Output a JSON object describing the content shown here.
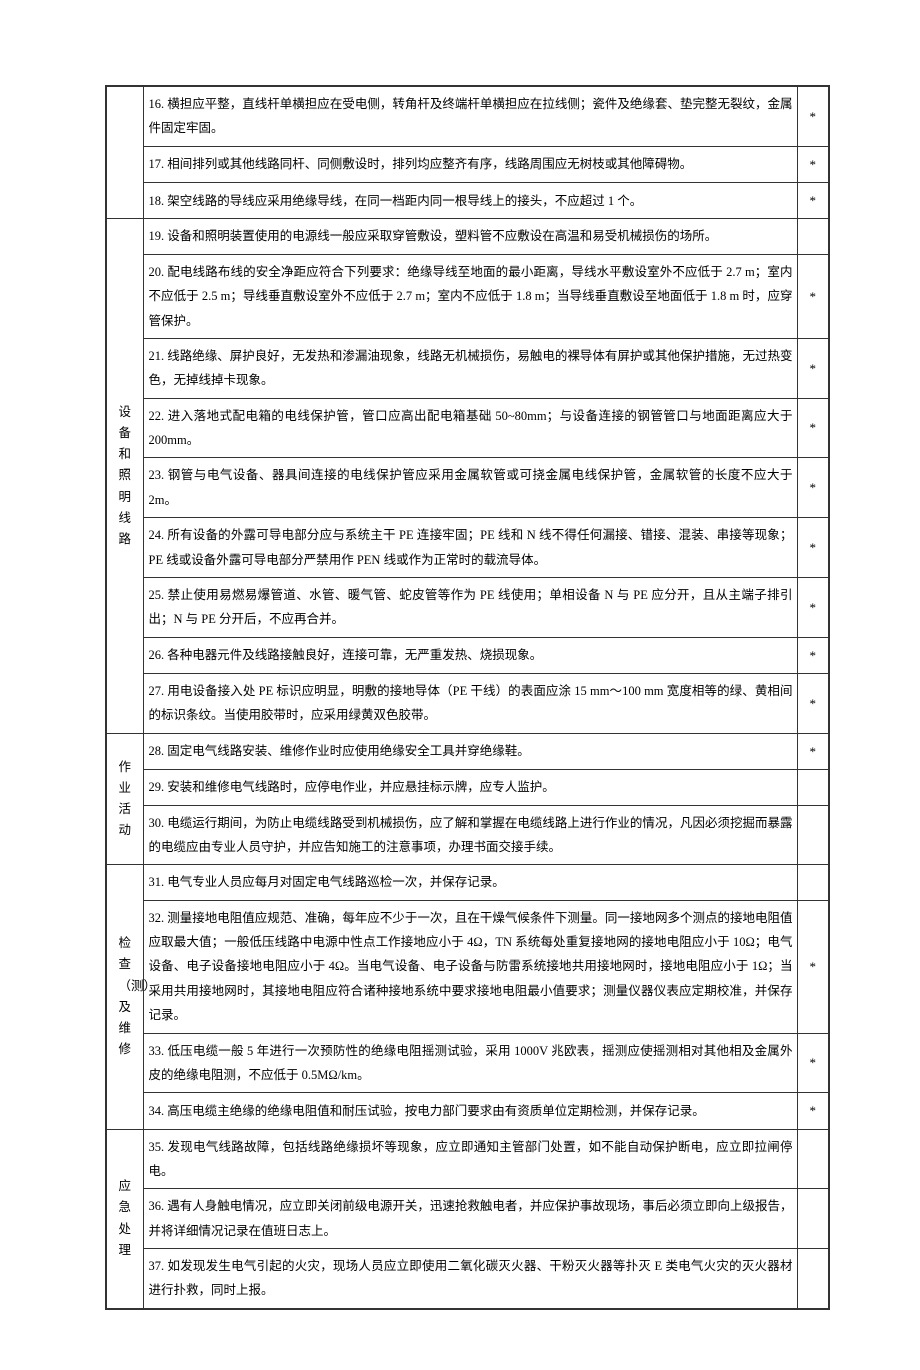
{
  "sections": [
    {
      "category": "",
      "rows": [
        {
          "text": "16. 横担应平整，直线杆单横担应在受电侧，转角杆及终端杆单横担应在拉线侧；瓷件及绝缘套、垫完整无裂纹，金属件固定牢固。",
          "mark": "*"
        },
        {
          "text": "17. 相间排列或其他线路同杆、同侧敷设时，排列均应整齐有序，线路周围应无树枝或其他障碍物。",
          "mark": "*"
        },
        {
          "text": "18. 架空线路的导线应采用绝缘导线，在同一档距内同一根导线上的接头，不应超过 1 个。",
          "mark": "*"
        }
      ]
    },
    {
      "category": "设备和照明线路",
      "rows": [
        {
          "text": "19. 设备和照明装置使用的电源线一般应采取穿管敷设，塑料管不应敷设在高温和易受机械损伤的场所。",
          "mark": ""
        },
        {
          "text": "20. 配电线路布线的安全净距应符合下列要求：绝缘导线至地面的最小距离，导线水平敷设室外不应低于 2.7 m；室内不应低于 2.5 m；导线垂直敷设室外不应低于 2.7 m；室内不应低于 1.8 m；当导线垂直敷设至地面低于 1.8 m 时，应穿管保护。",
          "mark": "*"
        },
        {
          "text": "21. 线路绝缘、屏护良好，无发热和渗漏油现象，线路无机械损伤，易触电的裸导体有屏护或其他保护措施，无过热变色，无掉线掉卡现象。",
          "mark": "*"
        },
        {
          "text": "22. 进入落地式配电箱的电线保护管，管口应高出配电箱基础 50~80mm；与设备连接的钢管管口与地面距离应大于 200mm。",
          "mark": "*"
        },
        {
          "text": "23. 钢管与电气设备、器具间连接的电线保护管应采用金属软管或可挠金属电线保护管，金属软管的长度不应大于 2m。",
          "mark": "*"
        },
        {
          "text": "24. 所有设备的外露可导电部分应与系统主干 PE 连接牢固；PE 线和 N 线不得任何漏接、错接、混装、串接等现象；PE 线或设备外露可导电部分严禁用作 PEN 线或作为正常时的载流导体。",
          "mark": "*"
        },
        {
          "text": "25. 禁止使用易燃易爆管道、水管、暖气管、蛇皮管等作为 PE 线使用；单相设备 N 与 PE 应分开，且从主端子排引出；N 与 PE 分开后，不应再合并。",
          "mark": "*"
        },
        {
          "text": "26. 各种电器元件及线路接触良好，连接可靠，无严重发热、烧损现象。",
          "mark": "*"
        },
        {
          "text": "27. 用电设备接入处 PE 标识应明显，明敷的接地导体（PE 干线）的表面应涂 15 mm～100 mm 宽度相等的绿、黄相间的标识条纹。当使用胶带时，应采用绿黄双色胶带。",
          "mark": "*"
        }
      ]
    },
    {
      "category": "作业活动",
      "rows": [
        {
          "text": "28. 固定电气线路安装、维修作业时应使用绝缘安全工具并穿绝缘鞋。",
          "mark": "*"
        },
        {
          "text": "29. 安装和维修电气线路时，应停电作业，并应悬挂标示牌，应专人监护。",
          "mark": ""
        },
        {
          "text": "30. 电缆运行期间，为防止电缆线路受到机械损伤，应了解和掌握在电缆线路上进行作业的情况，凡因必须挖掘而暴露的电缆应由专业人员守护，并应告知施工的注意事项，办理书面交接手续。",
          "mark": ""
        }
      ]
    },
    {
      "category": "检查（测）及维修",
      "rows": [
        {
          "text": "31. 电气专业人员应每月对固定电气线路巡检一次，并保存记录。",
          "mark": ""
        },
        {
          "text": "32. 测量接地电阻值应规范、准确，每年应不少于一次，且在干燥气候条件下测量。同一接地网多个测点的接地电阻值应取最大值；一般低压线路中电源中性点工作接地应小于 4Ω，TN 系统每处重复接地网的接地电阻应小于 10Ω；电气设备、电子设备接地电阻应小于 4Ω。当电气设备、电子设备与防雷系统接地共用接地网时，接地电阻应小于 1Ω；当采用共用接地网时，其接地电阻应符合诸种接地系统中要求接地电阻最小值要求；测量仪器仪表应定期校准，并保存记录。",
          "mark": "*"
        },
        {
          "text": "33. 低压电缆一般 5 年进行一次预防性的绝缘电阻摇测试验，采用 1000V 兆欧表，摇测应使摇测相对其他相及金属外皮的绝缘电阻测，不应低于 0.5MΩ/km。",
          "mark": "*"
        },
        {
          "text": "34. 高压电缆主绝缘的绝缘电阻值和耐压试验，按电力部门要求由有资质单位定期检测，并保存记录。",
          "mark": "*"
        }
      ]
    },
    {
      "category": "应急处理",
      "rows": [
        {
          "text": "35. 发现电气线路故障，包括线路绝缘损坏等现象，应立即通知主管部门处置，如不能自动保护断电，应立即拉闸停电。",
          "mark": ""
        },
        {
          "text": "36. 遇有人身触电情况，应立即关闭前级电源开关，迅速抢救触电者，并应保护事故现场，事后必须立即向上级报告，并将详细情况记录在值班日志上。",
          "mark": ""
        },
        {
          "text": "37. 如发现发生电气引起的火灾，现场人员应立即使用二氧化碳灭火器、干粉灭火器等扑灭 E 类电气火灾的灭火器材进行扑救，同时上报。",
          "mark": ""
        }
      ]
    }
  ]
}
